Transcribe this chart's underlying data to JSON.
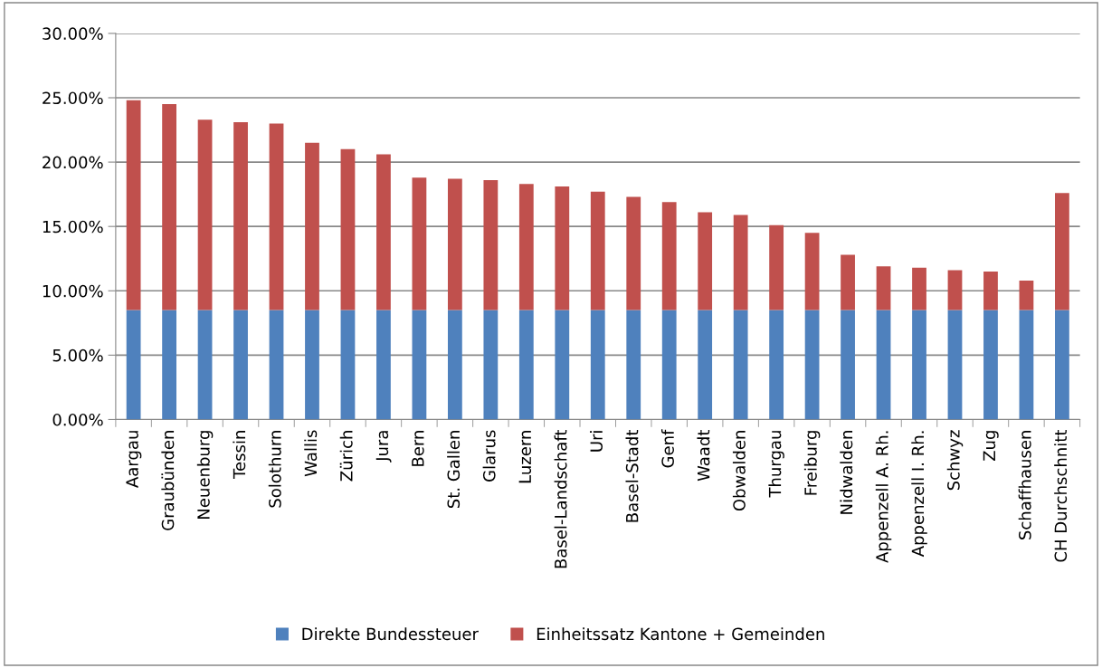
{
  "chart_data": {
    "type": "bar",
    "stacked": true,
    "categories": [
      "Aargau",
      "Graubünden",
      "Neuenburg",
      "Tessin",
      "Solothurn",
      "Wallis",
      "Zürich",
      "Jura",
      "Bern",
      "St. Gallen",
      "Glarus",
      "Luzern",
      "Basel-Landschaft",
      "Uri",
      "Basel-Stadt",
      "Genf",
      "Waadt",
      "Obwalden",
      "Thurgau",
      "Freiburg",
      "Nidwalden",
      "Appenzell A. Rh.",
      "Appenzell I. Rh.",
      "Schwyz",
      "Zug",
      "Schaffhausen",
      "CH Durchschnitt"
    ],
    "series": [
      {
        "name": "Direkte Bundessteuer",
        "color": "#4f81bd",
        "values": [
          8.5,
          8.5,
          8.5,
          8.5,
          8.5,
          8.5,
          8.5,
          8.5,
          8.5,
          8.5,
          8.5,
          8.5,
          8.5,
          8.5,
          8.5,
          8.5,
          8.5,
          8.5,
          8.5,
          8.5,
          8.5,
          8.5,
          8.5,
          8.5,
          8.5,
          8.5,
          8.5
        ]
      },
      {
        "name": "Einheitssatz Kantone + Gemeinden",
        "color": "#c0504d",
        "values": [
          16.3,
          16.0,
          14.8,
          14.6,
          14.5,
          13.0,
          12.5,
          12.1,
          10.3,
          10.2,
          10.1,
          9.8,
          9.6,
          9.2,
          8.8,
          8.4,
          7.6,
          7.4,
          6.6,
          6.0,
          4.3,
          3.4,
          3.3,
          3.1,
          3.0,
          2.3,
          9.1
        ]
      }
    ],
    "ylim": [
      0,
      30
    ],
    "yticks": [
      {
        "value": 0,
        "label": "0.00%"
      },
      {
        "value": 5,
        "label": "5.00%"
      },
      {
        "value": 10,
        "label": "10.00%"
      },
      {
        "value": 15,
        "label": "15.00%"
      },
      {
        "value": 20,
        "label": "20.00%"
      },
      {
        "value": 25,
        "label": "25.00%"
      },
      {
        "value": 30,
        "label": "30.00%"
      }
    ],
    "grid": "y",
    "legend": "bottom"
  }
}
